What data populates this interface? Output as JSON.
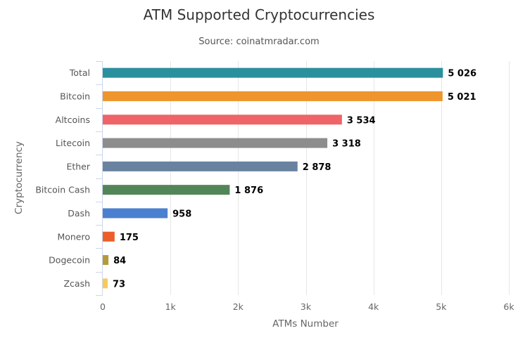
{
  "chart_data": {
    "type": "bar",
    "orientation": "horizontal",
    "title": "ATM Supported Cryptocurrencies",
    "subtitle": "Source: coinatmradar.com",
    "xlabel": "ATMs Number",
    "ylabel": "Cryptocurrency",
    "xlim": [
      0,
      6000
    ],
    "x_ticks": [
      0,
      1000,
      2000,
      3000,
      4000,
      5000,
      6000
    ],
    "x_tick_labels": [
      "0",
      "1k",
      "2k",
      "3k",
      "4k",
      "5k",
      "6k"
    ],
    "grid": true,
    "legend": "none",
    "categories": [
      "Total",
      "Bitcoin",
      "Altcoins",
      "Litecoin",
      "Ether",
      "Bitcoin Cash",
      "Dash",
      "Monero",
      "Dogecoin",
      "Zcash"
    ],
    "values": [
      5026,
      5021,
      3534,
      3318,
      2878,
      1876,
      958,
      175,
      84,
      73
    ],
    "data_labels": [
      "5 026",
      "5 021",
      "3 534",
      "3 318",
      "2 878",
      "1 876",
      "958",
      "175",
      "84",
      "73"
    ],
    "colors": [
      "#2b909d",
      "#ee952e",
      "#ee6468",
      "#8d8d8d",
      "#6982a0",
      "#528659",
      "#4a80cf",
      "#ec5e2a",
      "#b59a3b",
      "#f8ca5c"
    ]
  }
}
